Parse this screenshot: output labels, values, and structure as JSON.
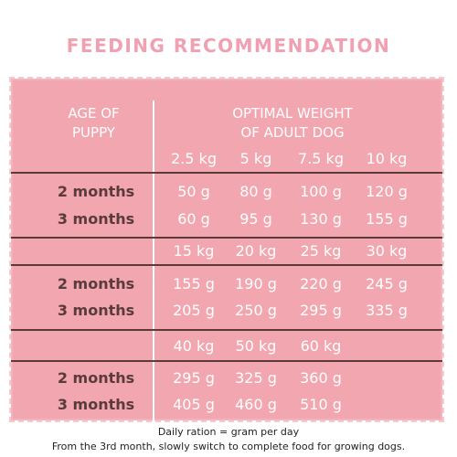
{
  "title": "FEEDING RECOMMENDATION",
  "header": {
    "age_col": [
      "AGE OF",
      "PUPPY"
    ],
    "weight_col": [
      "OPTIMAL WEIGHT",
      "OF ADULT DOG"
    ]
  },
  "sections": [
    {
      "weights": [
        "2.5 kg",
        "5 kg",
        "7.5 kg",
        "10 kg"
      ],
      "rows": [
        {
          "age": "2 months",
          "values": [
            "50 g",
            "80 g",
            "100 g",
            "120 g"
          ]
        },
        {
          "age": "3 months",
          "values": [
            "60 g",
            "95 g",
            "130 g",
            "155 g"
          ]
        }
      ]
    },
    {
      "weights": [
        "15 kg",
        "20 kg",
        "25 kg",
        "30 kg"
      ],
      "rows": [
        {
          "age": "2 months",
          "values": [
            "155 g",
            "190 g",
            "220 g",
            "245 g"
          ]
        },
        {
          "age": "3 months",
          "values": [
            "205 g",
            "250 g",
            "295 g",
            "335 g"
          ]
        }
      ]
    },
    {
      "weights": [
        "40 kg",
        "50 kg",
        "60 kg"
      ],
      "rows": [
        {
          "age": "2 months",
          "values": [
            "295 g",
            "325 g",
            "360 g"
          ]
        },
        {
          "age": "3 months",
          "values": [
            "405 g",
            "460 g",
            "510 g"
          ]
        }
      ]
    }
  ],
  "notes": [
    "Daily ration = gram per day",
    "From the 3rd month, slowly switch to complete food for growing dogs."
  ],
  "colors": {
    "panel": "#f1a6b0",
    "title": "#f0a0b0",
    "age_text": "#5a3a3a",
    "value_text": "#ffffff"
  }
}
